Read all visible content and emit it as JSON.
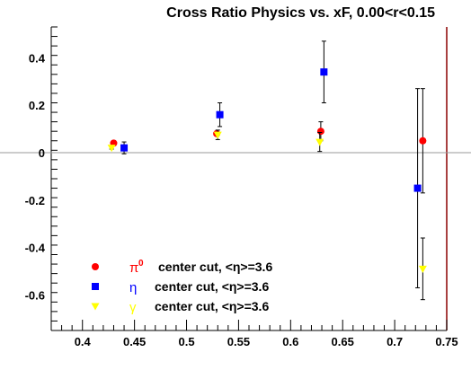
{
  "chart_data": {
    "type": "scatter",
    "title": "Cross Ratio Physics vs. xF, 0.00<r<0.15",
    "xlabel": "",
    "ylabel": "",
    "xlim": [
      0.37,
      0.75
    ],
    "ylim": [
      -0.75,
      0.53
    ],
    "xticks": [
      0.4,
      0.45,
      0.5,
      0.55,
      0.6,
      0.65,
      0.7,
      0.75
    ],
    "xtick_labels": [
      "0.4",
      "0.45",
      "0.5",
      "0.55",
      "0.6",
      "0.65",
      "0.7",
      "0.75"
    ],
    "yticks": [
      -0.6,
      -0.4,
      -0.2,
      0,
      0.2,
      0.4
    ],
    "ytick_labels": [
      "-0.6",
      "-0.4",
      "-0.2",
      "0",
      "0.2",
      "0.4"
    ],
    "reference_line_y": 0,
    "grid": false,
    "legend_position": "bottom-left",
    "series": [
      {
        "name": "π⁰",
        "symbol_text": "π",
        "symbol_sup": "0",
        "label": "center cut, <η>=3.6",
        "marker": "circle",
        "color": "#ff0000",
        "points": [
          {
            "x": 0.43,
            "y": 0.04,
            "err": 0.01
          },
          {
            "x": 0.529,
            "y": 0.08,
            "err": 0.01
          },
          {
            "x": 0.629,
            "y": 0.09,
            "err": 0.04
          },
          {
            "x": 0.727,
            "y": 0.05,
            "err": 0.22
          }
        ]
      },
      {
        "name": "η",
        "symbol_text": "η",
        "symbol_sup": "",
        "label": "center cut, <η>=3.6",
        "marker": "square",
        "color": "#0000ff",
        "points": [
          {
            "x": 0.44,
            "y": 0.02,
            "err": 0.025
          },
          {
            "x": 0.532,
            "y": 0.16,
            "err": 0.05
          },
          {
            "x": 0.632,
            "y": 0.34,
            "err": 0.13
          },
          {
            "x": 0.722,
            "y": -0.15,
            "err": 0.42
          }
        ]
      },
      {
        "name": "γ",
        "symbol_text": "γ",
        "symbol_sup": "",
        "label": "center cut, <η>=3.6",
        "marker": "triangle-down",
        "color": "#ffff00",
        "points": [
          {
            "x": 0.428,
            "y": 0.02,
            "err": 0.005
          },
          {
            "x": 0.53,
            "y": 0.075,
            "err": 0.02
          },
          {
            "x": 0.628,
            "y": 0.045,
            "err": 0.04
          },
          {
            "x": 0.727,
            "y": -0.49,
            "err": 0.13
          }
        ]
      }
    ]
  }
}
